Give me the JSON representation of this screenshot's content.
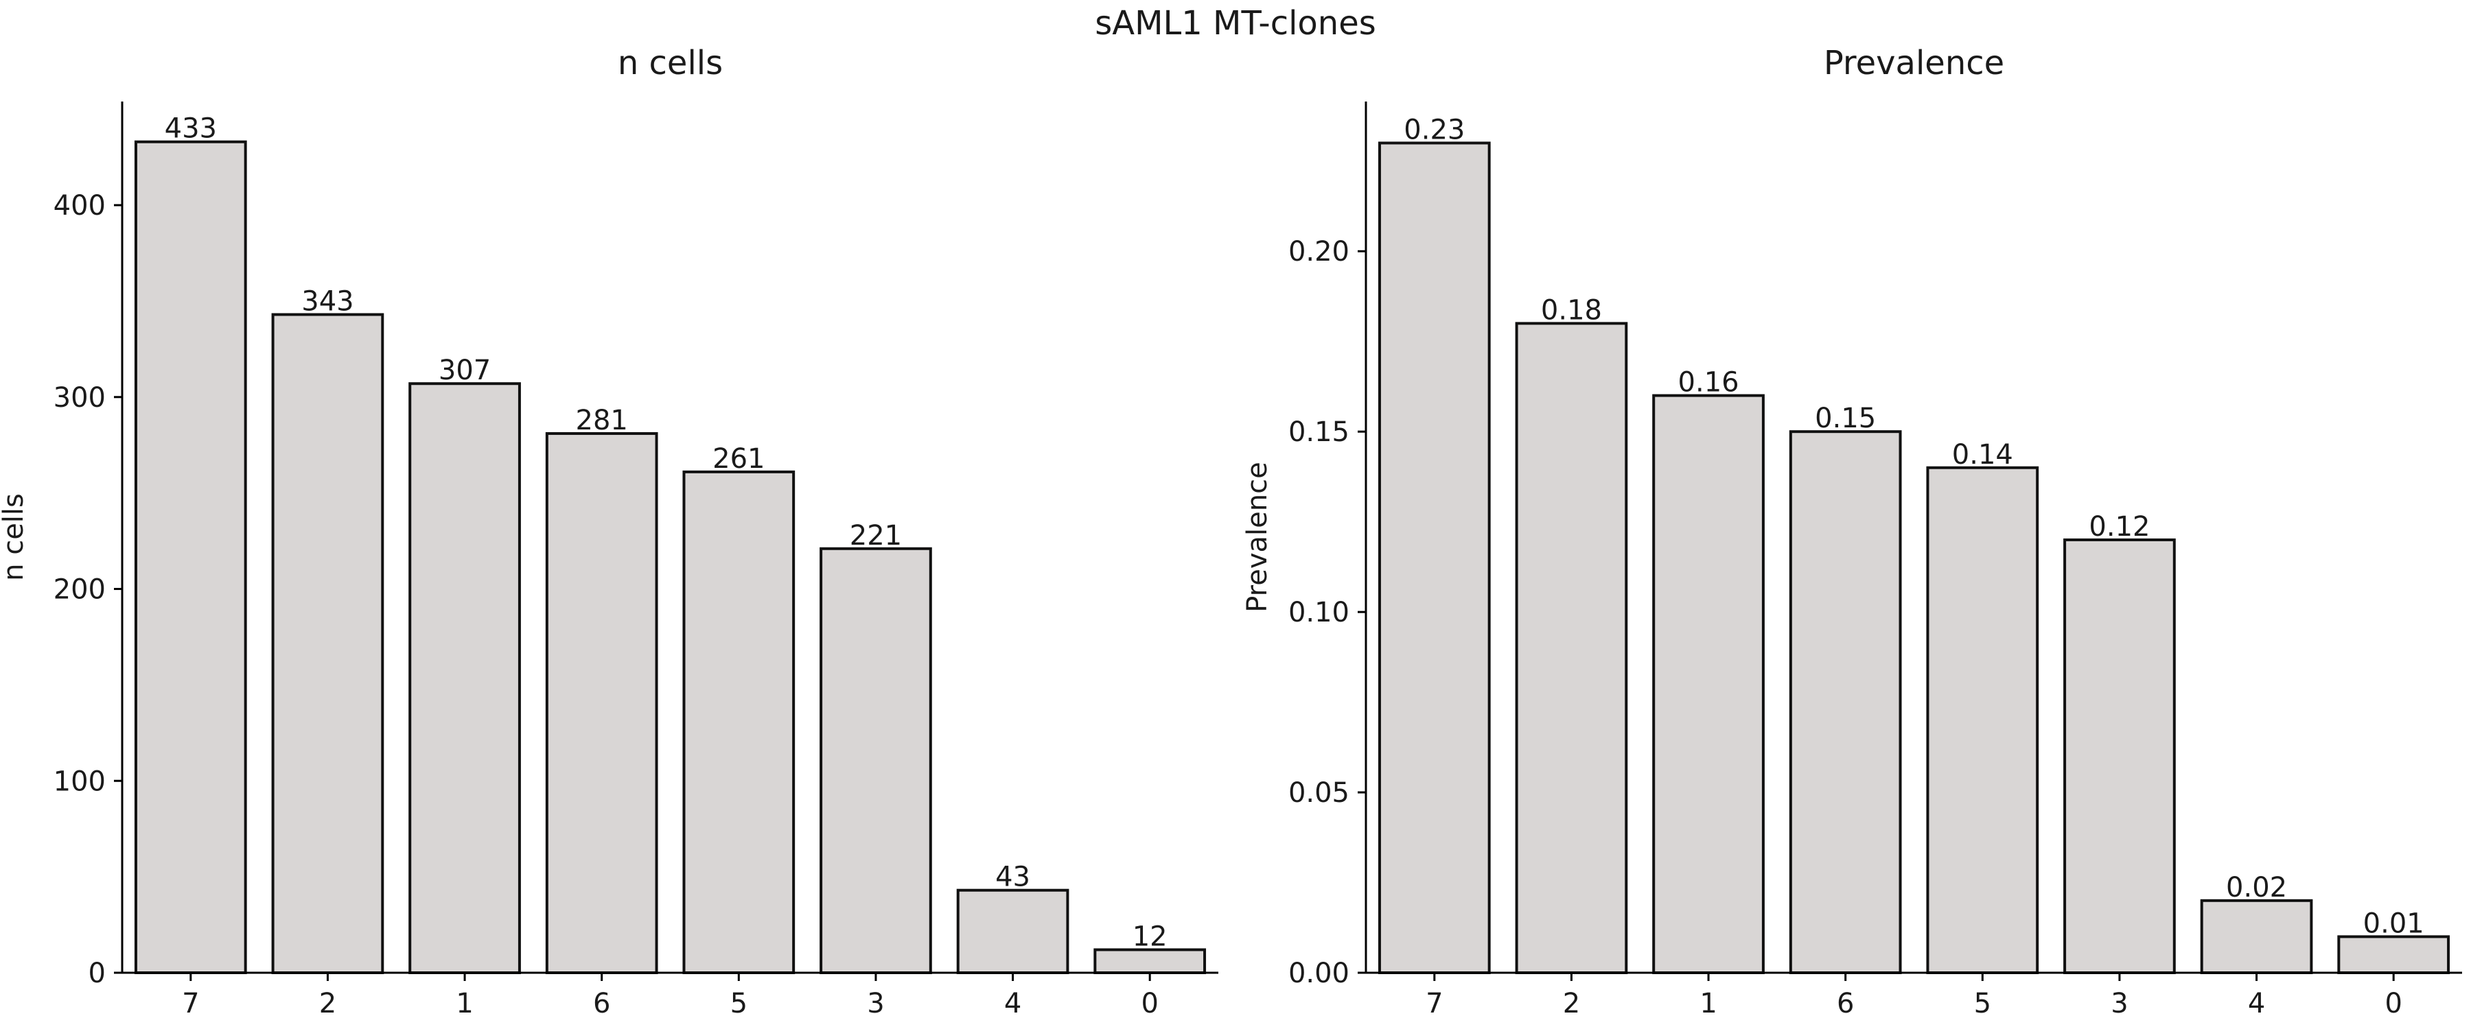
{
  "figure": {
    "title": "sAML1 MT-clones"
  },
  "chart_data": [
    {
      "type": "bar",
      "title": "n cells",
      "xlabel": "",
      "ylabel": "n cells",
      "categories": [
        "7",
        "2",
        "1",
        "6",
        "5",
        "3",
        "4",
        "0"
      ],
      "values": [
        433,
        343,
        307,
        281,
        261,
        221,
        43,
        12
      ],
      "value_labels": [
        "433",
        "343",
        "307",
        "281",
        "261",
        "221",
        "43",
        "12"
      ],
      "ylim": [
        0,
        454
      ],
      "yticks": [
        0,
        100,
        200,
        300,
        400
      ],
      "ytick_labels": [
        "0",
        "100",
        "200",
        "300",
        "400"
      ],
      "grid": false,
      "bar_color": "#d9d6d5",
      "edge_color": "#111111"
    },
    {
      "type": "bar",
      "title": "Prevalence",
      "xlabel": "",
      "ylabel": "Prevalence",
      "categories": [
        "7",
        "2",
        "1",
        "6",
        "5",
        "3",
        "4",
        "0"
      ],
      "values": [
        0.23,
        0.18,
        0.16,
        0.15,
        0.14,
        0.12,
        0.02,
        0.01
      ],
      "value_labels": [
        "0.23",
        "0.18",
        "0.16",
        "0.15",
        "0.14",
        "0.12",
        "0.02",
        "0.01"
      ],
      "ylim": [
        0,
        0.2415
      ],
      "yticks": [
        0,
        0.05,
        0.1,
        0.15,
        0.2
      ],
      "ytick_labels": [
        "0.00",
        "0.05",
        "0.10",
        "0.15",
        "0.20"
      ],
      "grid": false,
      "bar_color": "#d9d6d5",
      "edge_color": "#111111"
    }
  ]
}
